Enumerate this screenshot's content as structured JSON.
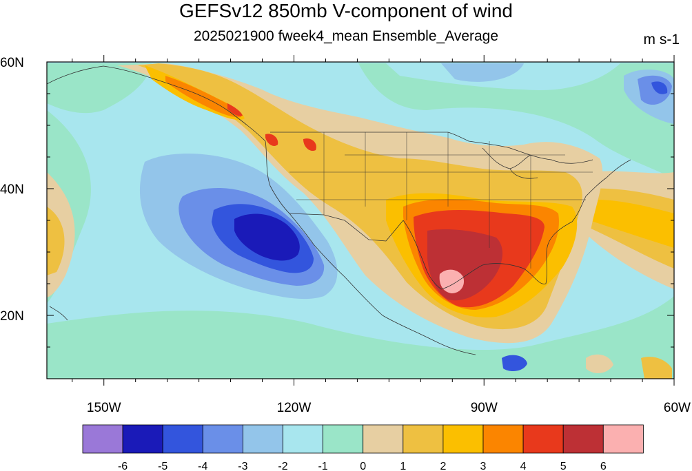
{
  "title": "GEFSv12 850mb V-component of wind",
  "subtitle": "2025021900 fweek4_mean Ensemble_Average",
  "units": "m s-1",
  "lat_labels": [
    {
      "text": "60N",
      "lat": 60
    },
    {
      "text": "40N",
      "lat": 40
    },
    {
      "text": "20N",
      "lat": 20
    }
  ],
  "lon_labels": [
    {
      "text": "150W",
      "lon": -150
    },
    {
      "text": "120W",
      "lon": -120
    },
    {
      "text": "90W",
      "lon": -90
    },
    {
      "text": "60W",
      "lon": -60
    }
  ],
  "map_extent": {
    "lon_min": -159,
    "lon_max": -60,
    "lat_min": 10,
    "lat_max": 60
  },
  "colorbar": {
    "levels": [
      "-6",
      "-5",
      "-4",
      "-3",
      "-2",
      "-1",
      "0",
      "1",
      "2",
      "3",
      "4",
      "5",
      "6"
    ],
    "colors": [
      "#9a78d8",
      "#1a1ab8",
      "#3355dd",
      "#6a8fe8",
      "#93c5ea",
      "#a8e6ee",
      "#9ae5c8",
      "#e7cfa2",
      "#eec041",
      "#fbbf00",
      "#fb8500",
      "#e8391c",
      "#bd3035",
      "#fbb0b0"
    ]
  },
  "colors": {
    "background_field": "#a8e6ee",
    "boundary_lines": "#333333"
  }
}
